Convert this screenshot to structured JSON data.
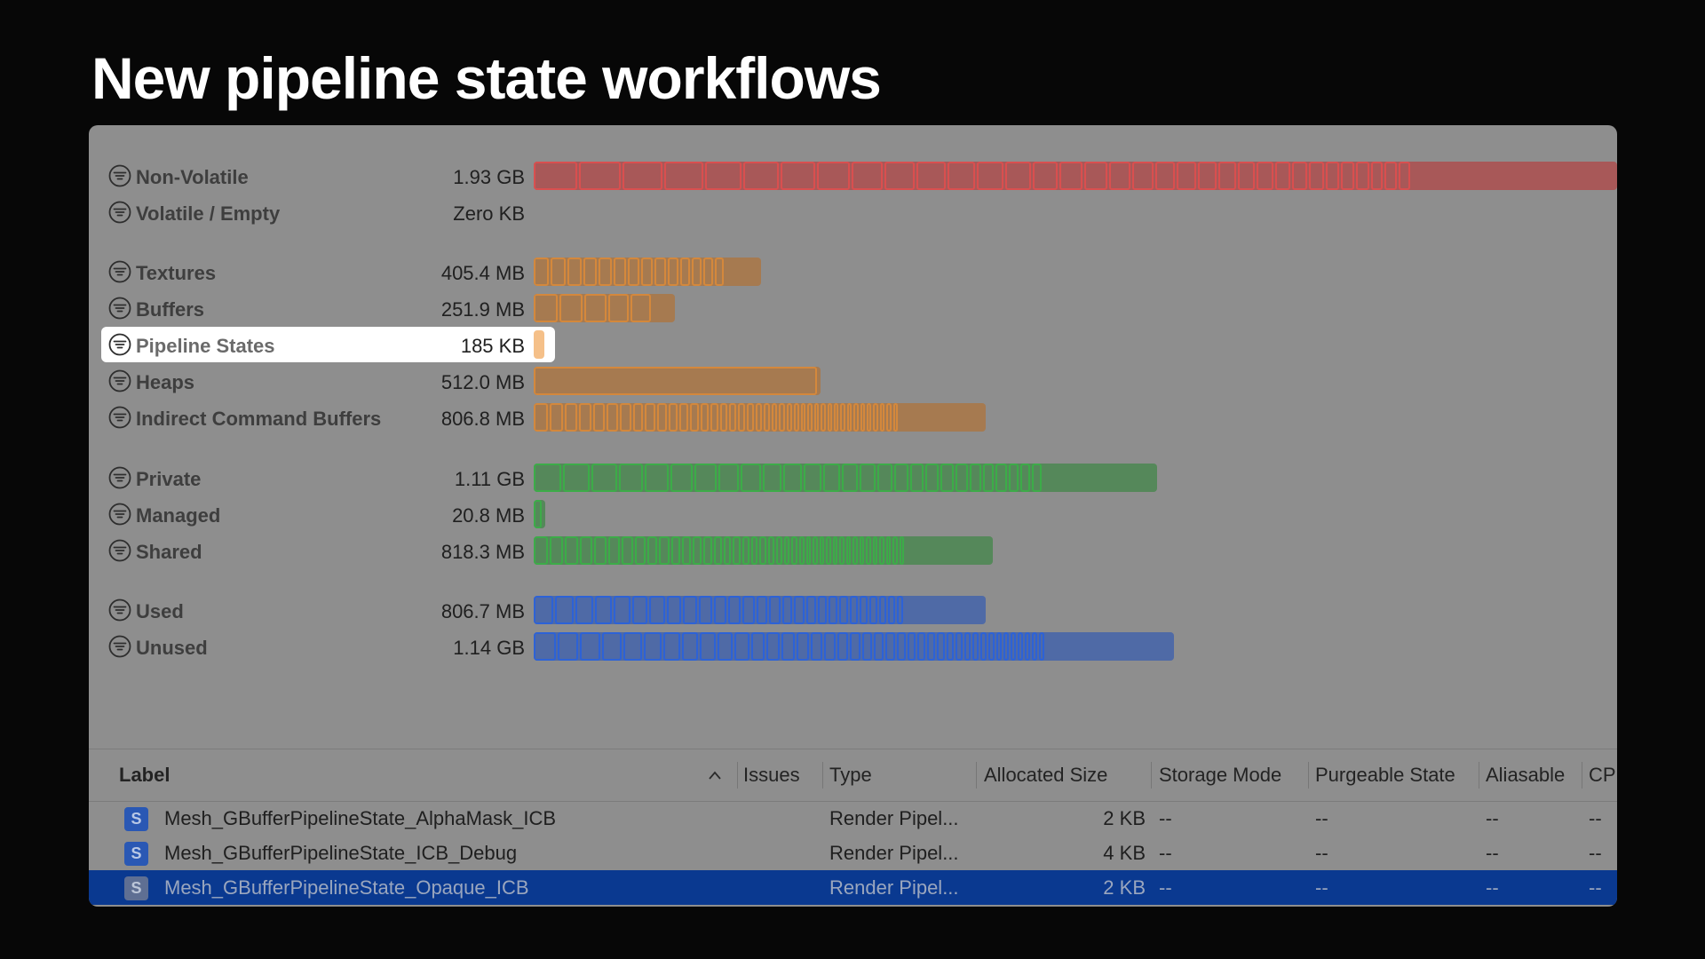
{
  "slide": {
    "title": "New pipeline state workflows"
  },
  "memory": {
    "rows": [
      {
        "label": "Non-Volatile",
        "value": "1.93 GB",
        "color": "red",
        "bar_fraction": 1.0,
        "block_count": 34
      },
      {
        "label": "Volatile / Empty",
        "value": "Zero KB",
        "color": "none",
        "bar_fraction": 0,
        "block_count": 0
      },
      {
        "label": "Textures",
        "value": "405.4 MB",
        "color": "orange",
        "bar_fraction": 0.2097,
        "block_count": 14
      },
      {
        "label": "Buffers",
        "value": "251.9 MB",
        "color": "orange",
        "bar_fraction": 0.1303,
        "block_count": 5
      },
      {
        "label": "Pipeline States",
        "value": "185 KB",
        "color": "orange-bright",
        "bar_fraction": 0.01,
        "block_count": 0,
        "highlighted": true
      },
      {
        "label": "Heaps",
        "value": "512.0 MB",
        "color": "orange",
        "bar_fraction": 0.2649,
        "block_count": 1
      },
      {
        "label": "Indirect Command Buffers",
        "value": "806.8 MB",
        "color": "orange",
        "bar_fraction": 0.4174,
        "block_count": 40
      },
      {
        "label": "Private",
        "value": "1.11 GB",
        "color": "green",
        "bar_fraction": 0.5751,
        "block_count": 27
      },
      {
        "label": "Managed",
        "value": "20.8 MB",
        "color": "green",
        "bar_fraction": 0.0108,
        "block_count": 1
      },
      {
        "label": "Shared",
        "value": "818.3 MB",
        "color": "green",
        "bar_fraction": 0.4234,
        "block_count": 40
      },
      {
        "label": "Used",
        "value": "806.7 MB",
        "color": "blue",
        "bar_fraction": 0.4174,
        "block_count": 27
      },
      {
        "label": "Unused",
        "value": "1.14 GB",
        "color": "blue",
        "bar_fraction": 0.5907,
        "block_count": 40
      }
    ],
    "colors": {
      "red": "#d94f4f",
      "orange": "#d4883c",
      "green": "#3cac48",
      "blue": "#2d62d6"
    }
  },
  "table": {
    "columns": [
      "Label",
      "Issues",
      "Type",
      "Allocated Size",
      "Storage Mode",
      "Purgeable State",
      "Aliasable",
      "CP"
    ],
    "sort_column": "Label",
    "rows": [
      {
        "label": "Mesh_GBufferPipelineState_AlphaMask_ICB",
        "issues": "",
        "type": "Render Pipel...",
        "allocated_size": "2 KB",
        "storage_mode": "--",
        "purgeable_state": "--",
        "aliasable": "--",
        "cp": "--",
        "badge": "S",
        "selected": false
      },
      {
        "label": "Mesh_GBufferPipelineState_ICB_Debug",
        "issues": "",
        "type": "Render Pipel...",
        "allocated_size": "4 KB",
        "storage_mode": "--",
        "purgeable_state": "--",
        "aliasable": "--",
        "cp": "--",
        "badge": "S",
        "selected": false
      },
      {
        "label": "Mesh_GBufferPipelineState_Opaque_ICB",
        "issues": "",
        "type": "Render Pipel...",
        "allocated_size": "2 KB",
        "storage_mode": "--",
        "purgeable_state": "--",
        "aliasable": "--",
        "cp": "--",
        "badge": "S",
        "selected": true
      }
    ]
  }
}
